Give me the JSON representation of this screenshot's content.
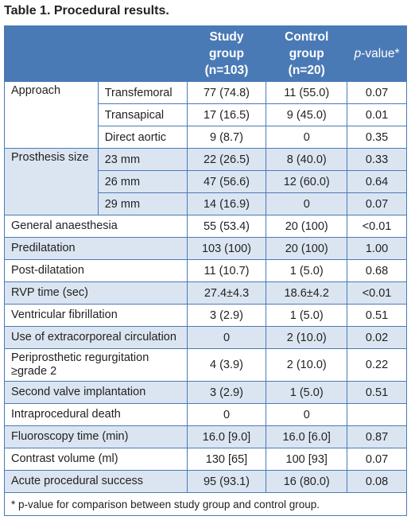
{
  "title": "Table 1. Procedural results.",
  "table": {
    "header": {
      "study": "Study group (n=103)",
      "control": "Control group (n=20)",
      "pvalue": [
        "p",
        "-value*"
      ]
    },
    "groups": [
      {
        "label": "Approach",
        "rows": [
          {
            "label": "Transfemoral",
            "values": [
              "77 (74.8)",
              "11 (55.0)",
              "0.07"
            ]
          },
          {
            "label": "Transapical",
            "values": [
              "17 (16.5)",
              "9 (45.0)",
              "0.01"
            ]
          },
          {
            "label": "Direct aortic",
            "values": [
              "9 (8.7)",
              "0",
              "0.35"
            ]
          }
        ]
      },
      {
        "label": "Prosthesis size",
        "rows": [
          {
            "label": "23 mm",
            "values": [
              "22 (26.5)",
              "8 (40.0)",
              "0.33"
            ]
          },
          {
            "label": "26 mm",
            "values": [
              "47 (56.6)",
              "12 (60.0)",
              "0.64"
            ]
          },
          {
            "label": "29 mm",
            "values": [
              "14 (16.9)",
              "0",
              "0.07"
            ]
          }
        ]
      },
      {
        "label": "General anaesthesia",
        "values": [
          "55 (53.4)",
          "20 (100)",
          "<0.01"
        ]
      },
      {
        "label": "Predilatation",
        "values": [
          "103 (100)",
          "20 (100)",
          "1.00"
        ]
      },
      {
        "label": "Post-dilatation",
        "values": [
          "11 (10.7)",
          "1 (5.0)",
          "0.68"
        ]
      },
      {
        "label": "RVP time (sec)",
        "values": [
          "27.4±4.3",
          "18.6±4.2",
          "<0.01"
        ]
      },
      {
        "label": "Ventricular fibrillation",
        "values": [
          "3 (2.9)",
          "1 (5.0)",
          "0.51"
        ]
      },
      {
        "label": "Use of extracorporeal circulation",
        "values": [
          "0",
          "2 (10.0)",
          "0.02"
        ]
      },
      {
        "label": "Periprosthetic regurgitation ≥grade 2",
        "values": [
          "4 (3.9)",
          "2 (10.0)",
          "0.22"
        ]
      },
      {
        "label": "Second valve implantation",
        "values": [
          "3 (2.9)",
          "1 (5.0)",
          "0.51"
        ]
      },
      {
        "label": "Intraprocedural death",
        "values": [
          "0",
          "0",
          null
        ]
      },
      {
        "label": "Fluoroscopy time (min)",
        "values": [
          "16.0 [9.0]",
          "16.0 [6.0]",
          "0.87"
        ]
      },
      {
        "label": "Contrast volume (ml)",
        "values": [
          "130 [65]",
          "100 [93]",
          "0.07"
        ]
      },
      {
        "label": "Acute procedural success",
        "values": [
          "95 (93.1)",
          "16 (80.0)",
          "0.08"
        ]
      }
    ],
    "footnote": "* p-value for comparison between study group and control group."
  }
}
